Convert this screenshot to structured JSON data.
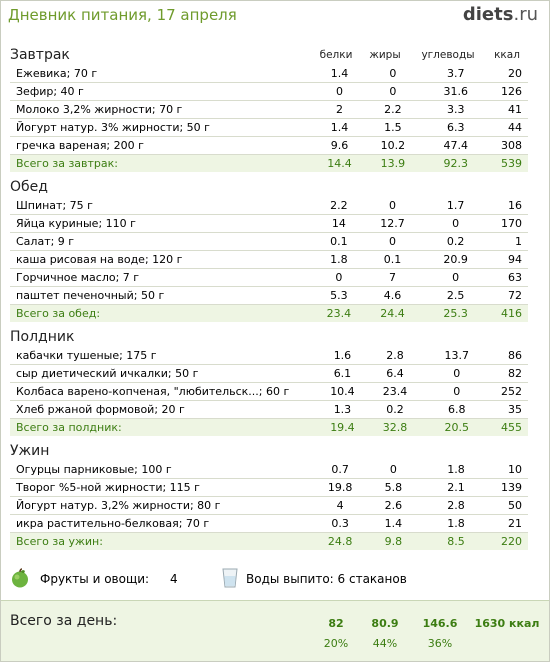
{
  "header": {
    "title": "Дневник питания, 17 апреля",
    "logo_main": "diets",
    "logo_suffix": ".ru"
  },
  "columns": {
    "protein": "белки",
    "fat": "жиры",
    "carbs": "углеводы",
    "kcal": "ккал"
  },
  "meals": [
    {
      "title": "Завтрак",
      "rows": [
        [
          "Ежевика; 70 г",
          "1.4",
          "0",
          "3.7",
          "20"
        ],
        [
          "Зефир; 40 г",
          "0",
          "0",
          "31.6",
          "126"
        ],
        [
          "Молоко 3,2% жирности; 70 г",
          "2",
          "2.2",
          "3.3",
          "41"
        ],
        [
          "Йогурт натур. 3% жирности; 50 г",
          "1.4",
          "1.5",
          "6.3",
          "44"
        ],
        [
          "гречка вареная; 200 г",
          "9.6",
          "10.2",
          "47.4",
          "308"
        ]
      ],
      "total": [
        "Всего за завтрак:",
        "14.4",
        "13.9",
        "92.3",
        "539"
      ]
    },
    {
      "title": "Обед",
      "rows": [
        [
          "Шпинат; 75 г",
          "2.2",
          "0",
          "1.7",
          "16"
        ],
        [
          "Яйца куриные; 110 г",
          "14",
          "12.7",
          "0",
          "170"
        ],
        [
          "Салат; 9 г",
          "0.1",
          "0",
          "0.2",
          "1"
        ],
        [
          "каша рисовая на воде; 120 г",
          "1.8",
          "0.1",
          "20.9",
          "94"
        ],
        [
          "Горчичное масло; 7 г",
          "0",
          "7",
          "0",
          "63"
        ],
        [
          "паштет печеночный; 50 г",
          "5.3",
          "4.6",
          "2.5",
          "72"
        ]
      ],
      "total": [
        "Всего за обед:",
        "23.4",
        "24.4",
        "25.3",
        "416"
      ]
    },
    {
      "title": "Полдник",
      "rows": [
        [
          "кабачки тушеные; 175 г",
          "1.6",
          "2.8",
          "13.7",
          "86"
        ],
        [
          "сыр диетический ичкалки; 50 г",
          "6.1",
          "6.4",
          "0",
          "82"
        ],
        [
          "Колбаса варено-копченая, \"любительск...; 60 г",
          "10.4",
          "23.4",
          "0",
          "252"
        ],
        [
          "Хлеб ржаной формовой; 20 г",
          "1.3",
          "0.2",
          "6.8",
          "35"
        ]
      ],
      "total": [
        "Всего за полдник:",
        "19.4",
        "32.8",
        "20.5",
        "455"
      ]
    },
    {
      "title": "Ужин",
      "rows": [
        [
          "Огурцы парниковые; 100 г",
          "0.7",
          "0",
          "1.8",
          "10"
        ],
        [
          "Творог %5-ной жирности; 115 г",
          "19.8",
          "5.8",
          "2.1",
          "139"
        ],
        [
          "Йогурт натур. 3,2% жирности; 80 г",
          "4",
          "2.6",
          "2.8",
          "50"
        ],
        [
          "икра растительно-белковая; 70 г",
          "0.3",
          "1.4",
          "1.8",
          "21"
        ]
      ],
      "total": [
        "Всего за ужин:",
        "24.8",
        "9.8",
        "8.5",
        "220"
      ]
    }
  ],
  "extras": {
    "fruit_label": "Фрукты и овощи:",
    "fruit_value": "4",
    "water_label": "Воды выпито: 6 стаканов",
    "fruit_icon": "green-apple-icon",
    "water_icon": "water-glass-icon"
  },
  "day_total": {
    "label": "Всего за день:",
    "protein": "82",
    "fat": "80.9",
    "carbs": "146.6",
    "kcal": "1630 ккал",
    "protein_pct": "20%",
    "fat_pct": "44%",
    "carbs_pct": "36%"
  },
  "colors": {
    "accent": "#6f9b2c",
    "total_text": "#3c7d12",
    "total_bg": "#eef5e3"
  }
}
